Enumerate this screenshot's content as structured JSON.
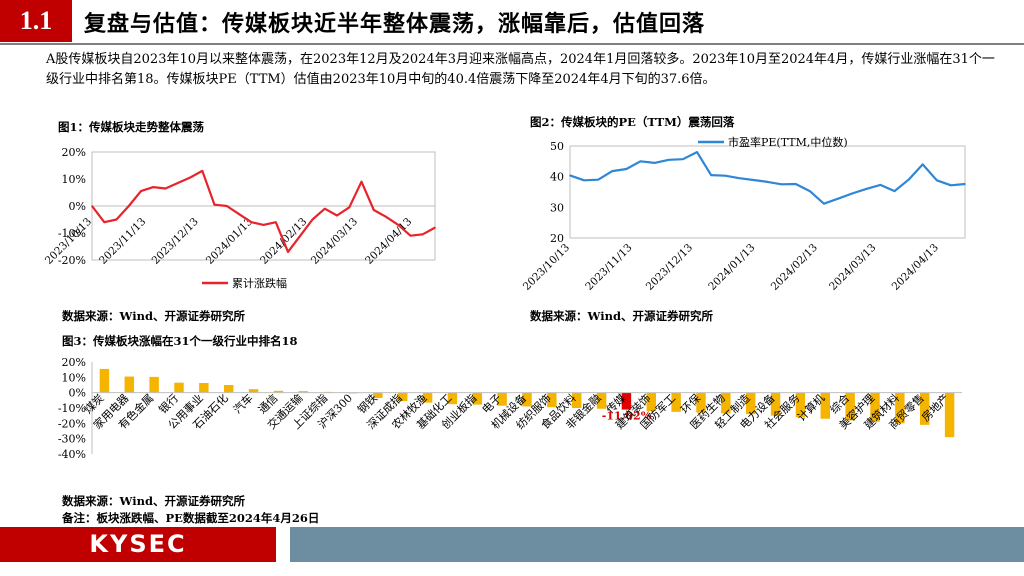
{
  "header": {
    "section_number": "1.1",
    "title": "复盘与估值：传媒板块近半年整体震荡，涨幅靠后，估值回落"
  },
  "intro_text": "A股传媒板块自2023年10月以来整体震荡，在2023年12月及2024年3月迎来涨幅高点，2024年1月回落较多。2023年10月至2024年4月，传媒行业涨幅在31个一级行业中排名第18。传媒板块PE（TTM）估值由2023年10月中旬的40.4倍震荡下降至2024年4月下旬的37.6倍。",
  "fig1": {
    "caption": "图1：传媒板块走势整体震荡",
    "source": "数据来源：Wind、开源证券研究所"
  },
  "fig2": {
    "caption": "图2：传媒板块的PE（TTM）震荡回落",
    "source": "数据来源：Wind、开源证券研究所"
  },
  "fig3": {
    "caption": "图3：传媒板块涨幅在31个一级行业中排名18",
    "source": "数据来源：Wind、开源证券研究所",
    "note": "备注：板块涨跌幅、PE数据截至2024年4月26日"
  },
  "footer": {
    "logo": "KYSEC"
  },
  "chart_data": [
    {
      "type": "line",
      "title": "图1：传媒板块走势整体震荡",
      "x_ticks": [
        "2023/10/13",
        "2023/11/13",
        "2023/12/13",
        "2024/01/13",
        "2024/02/13",
        "2024/03/13",
        "2024/04/13"
      ],
      "y_ticks": [
        "20%",
        "10%",
        "0%",
        "-10%",
        "-20%"
      ],
      "ylim": [
        -20,
        20
      ],
      "legend_position": "bottom",
      "grid": false,
      "series": [
        {
          "name": "累计涨跌幅",
          "color": "#e8232a",
          "x": [
            "2023/10/13",
            "2023/10/20",
            "2023/10/27",
            "2023/11/03",
            "2023/11/10",
            "2023/11/17",
            "2023/11/24",
            "2023/12/01",
            "2023/12/08",
            "2023/12/15",
            "2023/12/22",
            "2023/12/29",
            "2024/01/05",
            "2024/01/12",
            "2024/01/19",
            "2024/01/26",
            "2024/02/02",
            "2024/02/09",
            "2024/02/16",
            "2024/02/23",
            "2024/03/01",
            "2024/03/08",
            "2024/03/15",
            "2024/03/22",
            "2024/03/29",
            "2024/04/05",
            "2024/04/12",
            "2024/04/19",
            "2024/04/26"
          ],
          "values": [
            0,
            -6,
            -5,
            0,
            5.5,
            7,
            6.5,
            8.5,
            10.5,
            13,
            0.5,
            0,
            -3,
            -6,
            -7,
            -6,
            -17,
            -11,
            -5,
            -1,
            -3.5,
            -0.5,
            9,
            -1.5,
            -4,
            -7,
            -11,
            -10.5,
            -8
          ]
        }
      ]
    },
    {
      "type": "line",
      "title": "图2：传媒板块的PE（TTM）震荡回落",
      "x_ticks": [
        "2023/10/13",
        "2023/11/13",
        "2023/12/13",
        "2024/01/13",
        "2024/02/13",
        "2024/03/13",
        "2024/04/13"
      ],
      "y_ticks": [
        "50",
        "40",
        "30",
        "20"
      ],
      "ylim": [
        20,
        50
      ],
      "legend_position": "top",
      "grid": false,
      "series": [
        {
          "name": "市盈率PE(TTM,中位数)",
          "color": "#2e86d6",
          "x": [
            "2023/10/13",
            "2023/10/20",
            "2023/10/27",
            "2023/11/03",
            "2023/11/10",
            "2023/11/17",
            "2023/11/24",
            "2023/12/01",
            "2023/12/08",
            "2023/12/15",
            "2023/12/22",
            "2023/12/29",
            "2024/01/05",
            "2024/01/12",
            "2024/01/19",
            "2024/01/26",
            "2024/02/02",
            "2024/02/09",
            "2024/02/16",
            "2024/02/23",
            "2024/03/01",
            "2024/03/08",
            "2024/03/15",
            "2024/03/22",
            "2024/03/29",
            "2024/04/05",
            "2024/04/12",
            "2024/04/19",
            "2024/04/26"
          ],
          "values": [
            40.4,
            38.8,
            39,
            41.8,
            42.5,
            45,
            44.5,
            45.5,
            45.7,
            48,
            40.5,
            40.3,
            39.5,
            38.9,
            38.3,
            37.5,
            37.6,
            35.3,
            31.2,
            32.8,
            34.5,
            36,
            37.3,
            35.3,
            39,
            44,
            38.8,
            37.2,
            37.6
          ]
        }
      ]
    },
    {
      "type": "bar",
      "title": "图3：传媒板块涨幅在31个一级行业中排名18",
      "y_ticks": [
        "20%",
        "10%",
        "0%",
        "-10%",
        "-20%",
        "-30%",
        "-40%"
      ],
      "ylim": [
        -40,
        20
      ],
      "highlight_category": "传媒",
      "highlight_label": "-11.02%",
      "colors": {
        "default": "#f5b400",
        "highlight": "#e00000"
      },
      "categories": [
        "煤炭",
        "家用电器",
        "有色金属",
        "银行",
        "公用事业",
        "石油石化",
        "汽车",
        "通信",
        "交通运输",
        "上证综指",
        "沪深300",
        "钢铁",
        "深证成指",
        "农林牧渔",
        "基础化工",
        "创业板指",
        "电子",
        "机械设备",
        "纺织服饰",
        "食品饮料",
        "非银金融",
        "传媒",
        "建筑装饰",
        "国防军工",
        "环保",
        "医药生物",
        "轻工制造",
        "电力设备",
        "社会服务",
        "计算机",
        "综合",
        "美容护理",
        "建筑材料",
        "商贸零售",
        "房地产"
      ],
      "values": [
        15.5,
        10.5,
        10.3,
        6.5,
        6.3,
        5.0,
        2.3,
        1.2,
        1.0,
        0.5,
        -0.5,
        -3.5,
        -5.5,
        -6.5,
        -7.5,
        -7.8,
        -8.5,
        -9,
        -9.5,
        -10,
        -10.5,
        -11.02,
        -12,
        -12.5,
        -13,
        -13.5,
        -14,
        -15,
        -16,
        -17,
        -18,
        -19,
        -20,
        -21,
        -29
      ]
    }
  ]
}
